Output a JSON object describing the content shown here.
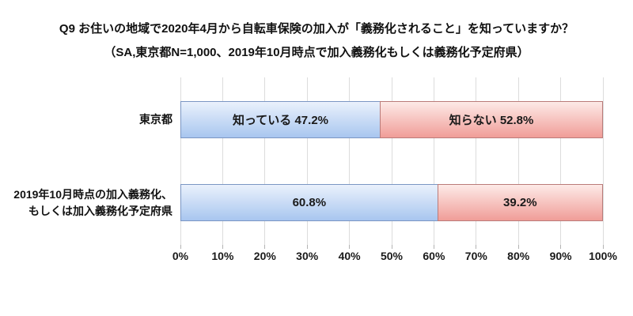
{
  "title": {
    "line1": "Q9 お住いの地域で2020年4月から自転車保険の加入が「義務化されること」を知っていますか？",
    "line2": "（SA,東京都N=1,000、2019年10月時点で加入義務化もしくは義務化予定府県）"
  },
  "chart_data": {
    "type": "bar",
    "orientation": "horizontal",
    "stacked": true,
    "title": "Q9 お住いの地域で2020年4月から自転車保険の加入が「義務化されること」を知っていますか？",
    "subtitle": "（SA,東京都N=1,000、2019年10月時点で加入義務化もしくは義務化予定府県）",
    "categories": [
      "東京都",
      "2019年10月時点の加入義務化、もしくは加入義務化予定府県"
    ],
    "category_label_lines": [
      [
        "東京都"
      ],
      [
        "2019年10月時点の加入義務化、",
        "もしくは加入義務化予定府県"
      ]
    ],
    "series": [
      {
        "name": "知っている",
        "values": [
          47.2,
          60.8
        ],
        "fill_top": "#eaf1fc",
        "fill_bottom": "#a8c6ef",
        "border": "#7b96c3"
      },
      {
        "name": "知らない",
        "values": [
          52.8,
          39.2
        ],
        "fill_top": "#fdeae7",
        "fill_bottom": "#f09d98",
        "border": "#ba7b79"
      }
    ],
    "segment_labels": [
      [
        "知っている 47.2%",
        "知らない 52.8%"
      ],
      [
        "60.8%",
        "39.2%"
      ]
    ],
    "x_ticks": [
      "0%",
      "10%",
      "20%",
      "30%",
      "40%",
      "50%",
      "60%",
      "70%",
      "80%",
      "90%",
      "100%"
    ],
    "xlim": [
      0,
      100
    ],
    "grid": true,
    "legend_position": "none"
  },
  "layout_colors": {
    "gridline": "#dcdcdc",
    "tick": "#b3b3b3",
    "text": "#111111"
  }
}
